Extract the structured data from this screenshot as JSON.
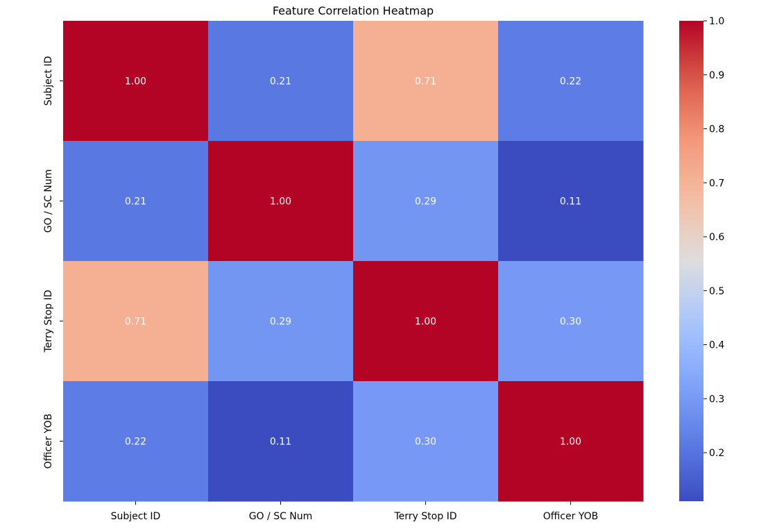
{
  "chart_data": {
    "type": "heatmap",
    "title": "Feature Correlation Heatmap",
    "xlabel": "",
    "ylabel": "",
    "x_categories": [
      "Subject ID",
      "GO / SC Num",
      "Terry Stop ID",
      "Officer YOB"
    ],
    "y_categories": [
      "Subject ID",
      "GO / SC Num",
      "Terry Stop ID",
      "Officer YOB"
    ],
    "values": [
      [
        1.0,
        0.21,
        0.71,
        0.22
      ],
      [
        0.21,
        1.0,
        0.29,
        0.11
      ],
      [
        0.71,
        0.29,
        1.0,
        0.3
      ],
      [
        0.22,
        0.11,
        0.3,
        1.0
      ]
    ],
    "annotations": [
      [
        "1.00",
        "0.21",
        "0.71",
        "0.22"
      ],
      [
        "0.21",
        "1.00",
        "0.29",
        "0.11"
      ],
      [
        "0.71",
        "0.29",
        "1.00",
        "0.30"
      ],
      [
        "0.22",
        "0.11",
        "0.30",
        "1.00"
      ]
    ],
    "colormap": "coolwarm",
    "colorbar": {
      "range": [
        0.11,
        1.0
      ],
      "ticks": [
        0.2,
        0.3,
        0.4,
        0.5,
        0.6,
        0.7,
        0.8,
        0.9,
        1.0
      ],
      "tick_labels": [
        "0.2",
        "0.3",
        "0.4",
        "0.5",
        "0.6",
        "0.7",
        "0.8",
        "0.9",
        "1.0"
      ],
      "position": "right"
    },
    "grid": false
  }
}
